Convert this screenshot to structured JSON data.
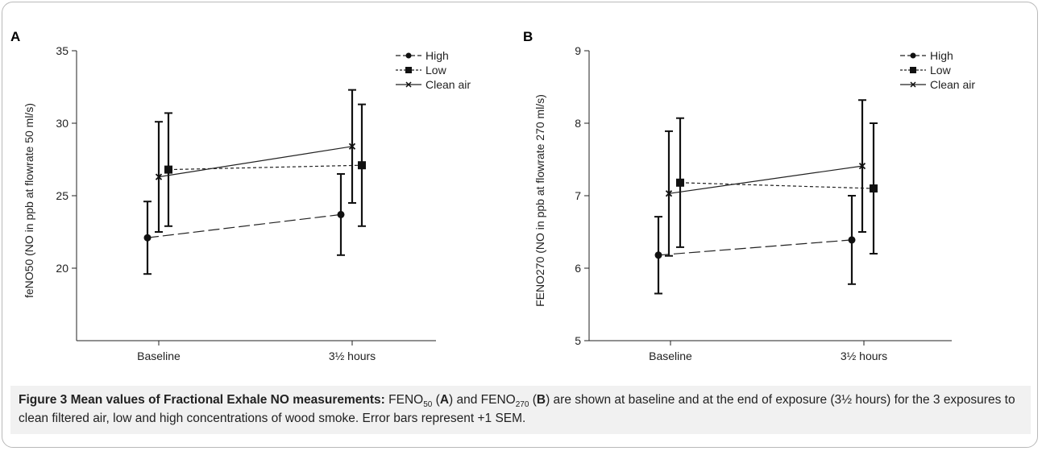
{
  "chart_data": [
    {
      "panel": "A",
      "type": "line",
      "ylabel": "feNO50 (NO in ppb at flowrate 50 ml/s)",
      "xlabel": "",
      "categories": [
        "Baseline",
        "3½ hours"
      ],
      "ylim": [
        15,
        35
      ],
      "yticks": [
        20,
        25,
        30,
        35
      ],
      "series": [
        {
          "name": "High",
          "values": [
            22.1,
            23.7
          ],
          "err": [
            2.5,
            2.8
          ]
        },
        {
          "name": "Low",
          "values": [
            26.8,
            27.1
          ],
          "err": [
            3.9,
            4.2
          ]
        },
        {
          "name": "Clean air",
          "values": [
            26.3,
            28.4
          ],
          "err": [
            3.8,
            3.9
          ]
        }
      ],
      "legend_position": "top-right"
    },
    {
      "panel": "B",
      "type": "line",
      "ylabel": "FENO270 (NO in ppb at flowrate 270 ml/s)",
      "xlabel": "",
      "categories": [
        "Baseline",
        "3½ hours"
      ],
      "ylim": [
        5,
        9
      ],
      "yticks": [
        5,
        6,
        7,
        8,
        9
      ],
      "series": [
        {
          "name": "High",
          "values": [
            6.18,
            6.39
          ],
          "err": [
            0.53,
            0.61
          ]
        },
        {
          "name": "Low",
          "values": [
            7.18,
            7.1
          ],
          "err": [
            0.89,
            0.9
          ]
        },
        {
          "name": "Clean air",
          "values": [
            7.03,
            7.41
          ],
          "err": [
            0.86,
            0.91
          ]
        }
      ],
      "legend_position": "top-right"
    }
  ],
  "caption": {
    "label": "Figure 3 Mean values of Fractional Exhale NO measurements:",
    "t1": "FENO",
    "sub1": "50",
    "t2": "(",
    "letterA": "A",
    "t3": ") and FENO",
    "sub2": "270",
    "t4": "(",
    "letterB": "B",
    "t5": ") are shown at baseline and at the end of exposure (3½ hours) for the 3 exposures to clean filtered air, low and high concentrations of wood smoke. Error bars represent +1 SEM."
  }
}
